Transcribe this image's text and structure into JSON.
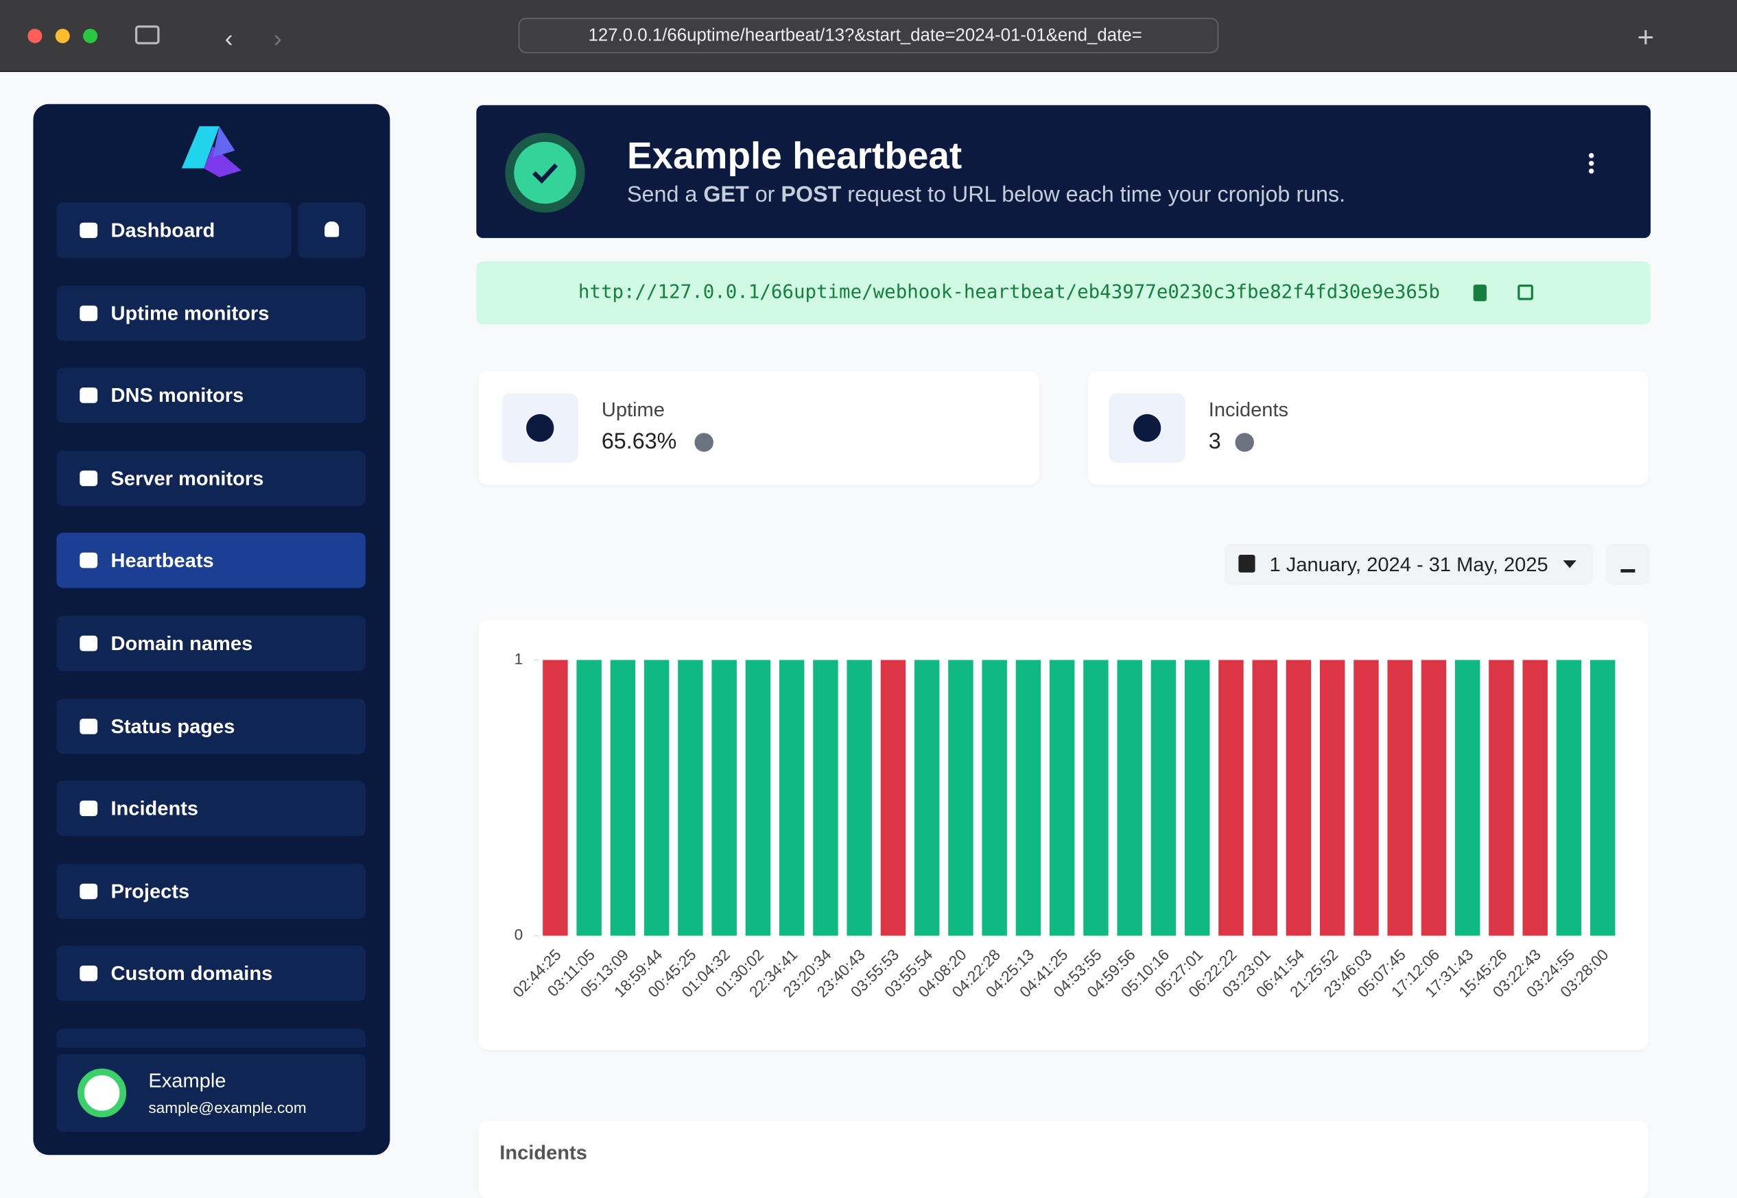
{
  "browser": {
    "url": "127.0.0.1/66uptime/heartbeat/13?&start_date=2024-01-01&end_date="
  },
  "sidebar": {
    "nav": [
      "Dashboard",
      "Uptime monitors",
      "DNS monitors",
      "Server monitors",
      "Heartbeats",
      "Domain names",
      "Status pages",
      "Incidents",
      "Projects",
      "Custom domains"
    ],
    "user": {
      "name": "Example",
      "email": "sample@example.com"
    }
  },
  "header": {
    "title": "Example heartbeat",
    "subtitle": [
      "Send a ",
      "GET",
      " or ",
      "POST",
      " request to URL below each time your cronjob runs."
    ]
  },
  "webhook_url": "http://127.0.0.1/66uptime/webhook-heartbeat/eb43977e0230c3fbe82f4fd30e9e365b",
  "stats": [
    {
      "label": "Uptime",
      "value": "65.63%"
    },
    {
      "label": "Incidents",
      "value": "3"
    }
  ],
  "date_range": "1 January, 2024 - 31 May, 2025",
  "chart_data": {
    "type": "bar",
    "categories": [
      "02:44:25",
      "03:11:05",
      "05:13:09",
      "18:59:44",
      "00:45:25",
      "01:04:32",
      "01:30:02",
      "22:34:41",
      "23:20:34",
      "23:40:43",
      "03:55:53",
      "03:55:54",
      "04:08:20",
      "04:22:28",
      "04:25:13",
      "04:41:25",
      "04:53:55",
      "04:59:56",
      "05:10:16",
      "05:27:01",
      "06:22:22",
      "03:23:01",
      "06:41:54",
      "21:25:52",
      "23:46:03",
      "05:07:45",
      "17:12:06",
      "17:31:43",
      "15:45:26",
      "03:22:43",
      "03:24:55",
      "03:28:00"
    ],
    "values": [
      1,
      1,
      1,
      1,
      1,
      1,
      1,
      1,
      1,
      1,
      1,
      1,
      1,
      1,
      1,
      1,
      1,
      1,
      1,
      1,
      1,
      1,
      1,
      1,
      1,
      1,
      1,
      1,
      1,
      1,
      1,
      1
    ],
    "colors": [
      "#dc3545",
      "#10b981",
      "#10b981",
      "#10b981",
      "#10b981",
      "#10b981",
      "#10b981",
      "#10b981",
      "#10b981",
      "#10b981",
      "#dc3545",
      "#10b981",
      "#10b981",
      "#10b981",
      "#10b981",
      "#10b981",
      "#10b981",
      "#10b981",
      "#10b981",
      "#10b981",
      "#dc3545",
      "#dc3545",
      "#dc3545",
      "#dc3545",
      "#dc3545",
      "#dc3545",
      "#dc3545",
      "#10b981",
      "#dc3545",
      "#dc3545",
      "#10b981",
      "#10b981"
    ],
    "ylim": [
      0,
      1
    ],
    "yticks": [
      0,
      1
    ]
  },
  "incidents_title": "Incidents"
}
